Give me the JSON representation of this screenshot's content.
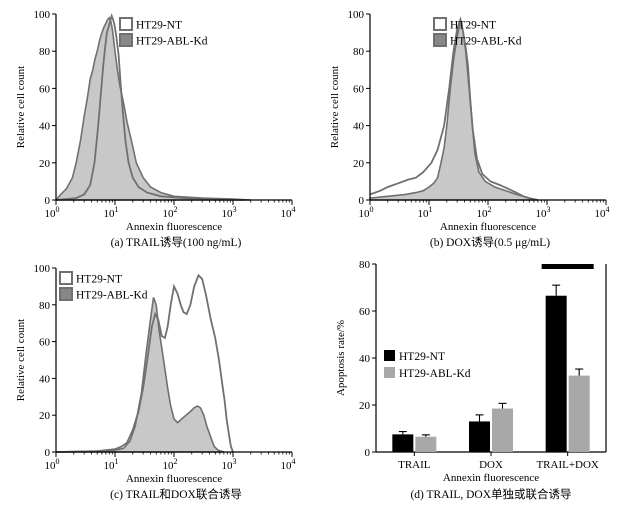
{
  "chart_data": [
    {
      "type": "area",
      "panel": "a",
      "caption": "(a) TRAIL诱导(100 ng/mL)",
      "xlabel": "Annexin fluorescence",
      "ylabel": "Relative cell count",
      "xscale": "log",
      "xlim": [
        1,
        10000
      ],
      "ylim": [
        0,
        100
      ],
      "xticks": [
        1,
        10,
        100,
        1000,
        10000
      ],
      "xtick_labels": [
        [
          "10",
          "0"
        ],
        [
          "10",
          "1"
        ],
        [
          "10",
          "2"
        ],
        [
          "10",
          "3"
        ],
        [
          "10",
          "4"
        ]
      ],
      "yticks": [
        0,
        20,
        40,
        60,
        80,
        100
      ],
      "legend": "top-right",
      "series": [
        {
          "name": "HT29-NT",
          "style": "outline",
          "points": [
            [
              1,
              0
            ],
            [
              2.2,
              1
            ],
            [
              3,
              3
            ],
            [
              3.8,
              8
            ],
            [
              4.5,
              20
            ],
            [
              5.2,
              40
            ],
            [
              5.8,
              58
            ],
            [
              6.3,
              72
            ],
            [
              6.8,
              82
            ],
            [
              7.3,
              90
            ],
            [
              7.8,
              93
            ],
            [
              8.3,
              96
            ],
            [
              8.8,
              99
            ],
            [
              9.3,
              97
            ],
            [
              9.8,
              94
            ],
            [
              10.5,
              88
            ],
            [
              11.5,
              78
            ],
            [
              12.5,
              62
            ],
            [
              13.5,
              48
            ],
            [
              15,
              32
            ],
            [
              17,
              20
            ],
            [
              20,
              12
            ],
            [
              25,
              7
            ],
            [
              35,
              4
            ],
            [
              60,
              2
            ],
            [
              150,
              1
            ],
            [
              600,
              0.5
            ],
            [
              1500,
              0
            ]
          ]
        },
        {
          "name": "HT29-ABL-Kd",
          "style": "filled",
          "points": [
            [
              1,
              0
            ],
            [
              1.2,
              3
            ],
            [
              1.5,
              6
            ],
            [
              1.9,
              12
            ],
            [
              2.2,
              20
            ],
            [
              2.6,
              32
            ],
            [
              3,
              45
            ],
            [
              3.4,
              55
            ],
            [
              3.8,
              65
            ],
            [
              4.2,
              70
            ],
            [
              4.6,
              76
            ],
            [
              5,
              80
            ],
            [
              5.5,
              86
            ],
            [
              6,
              90
            ],
            [
              6.5,
              93
            ],
            [
              7,
              95
            ],
            [
              7.5,
              97
            ],
            [
              8,
              98
            ],
            [
              8.5,
              96
            ],
            [
              9,
              92
            ],
            [
              9.5,
              86
            ],
            [
              10,
              80
            ],
            [
              11,
              70
            ],
            [
              12,
              62
            ],
            [
              14,
              52
            ],
            [
              16,
              42
            ],
            [
              19,
              32
            ],
            [
              23,
              20
            ],
            [
              30,
              12
            ],
            [
              40,
              7
            ],
            [
              60,
              4
            ],
            [
              100,
              2
            ],
            [
              300,
              1
            ],
            [
              1000,
              0.5
            ],
            [
              2000,
              0
            ]
          ]
        }
      ]
    },
    {
      "type": "area",
      "panel": "b",
      "caption": "(b) DOX诱导(0.5 μg/mL)",
      "xlabel": "Annexin fluorescence",
      "ylabel": "Relative cell count",
      "xscale": "log",
      "xlim": [
        1,
        10000
      ],
      "ylim": [
        0,
        100
      ],
      "xticks": [
        1,
        10,
        100,
        1000,
        10000
      ],
      "xtick_labels": [
        [
          "10",
          "0"
        ],
        [
          "10",
          "1"
        ],
        [
          "10",
          "2"
        ],
        [
          "10",
          "3"
        ],
        [
          "10",
          "4"
        ]
      ],
      "yticks": [
        0,
        20,
        40,
        60,
        80,
        100
      ],
      "legend": "top-right",
      "series": [
        {
          "name": "HT29-NT",
          "style": "outline",
          "points": [
            [
              1,
              3
            ],
            [
              1.5,
              5
            ],
            [
              2,
              7
            ],
            [
              3,
              9
            ],
            [
              4.5,
              11
            ],
            [
              6,
              12
            ],
            [
              8,
              15
            ],
            [
              11,
              20
            ],
            [
              14,
              27
            ],
            [
              18,
              40
            ],
            [
              22,
              60
            ],
            [
              26,
              80
            ],
            [
              30,
              92
            ],
            [
              34,
              97
            ],
            [
              38,
              90
            ],
            [
              42,
              80
            ],
            [
              48,
              60
            ],
            [
              55,
              38
            ],
            [
              65,
              22
            ],
            [
              80,
              14
            ],
            [
              110,
              10
            ],
            [
              160,
              8
            ],
            [
              220,
              6
            ],
            [
              300,
              4
            ],
            [
              400,
              2
            ],
            [
              500,
              1
            ],
            [
              700,
              0
            ]
          ]
        },
        {
          "name": "HT29-ABL-Kd",
          "style": "filled",
          "points": [
            [
              1,
              1
            ],
            [
              2,
              2
            ],
            [
              4,
              3
            ],
            [
              6,
              4
            ],
            [
              8,
              5
            ],
            [
              10,
              7
            ],
            [
              12,
              9
            ],
            [
              14,
              12
            ],
            [
              16,
              20
            ],
            [
              18,
              28
            ],
            [
              20,
              40
            ],
            [
              23,
              60
            ],
            [
              26,
              75
            ],
            [
              29,
              85
            ],
            [
              32,
              92
            ],
            [
              35,
              96
            ],
            [
              38,
              90
            ],
            [
              42,
              82
            ],
            [
              46,
              72
            ],
            [
              50,
              55
            ],
            [
              55,
              38
            ],
            [
              60,
              25
            ],
            [
              70,
              15
            ],
            [
              90,
              10
            ],
            [
              130,
              7
            ],
            [
              200,
              5
            ],
            [
              300,
              3
            ],
            [
              400,
              2
            ],
            [
              500,
              1
            ],
            [
              700,
              0
            ]
          ]
        }
      ]
    },
    {
      "type": "area",
      "panel": "c",
      "caption": "(c) TRAIL和DOX联合诱导",
      "xlabel": "Annexin fluorescence",
      "ylabel": "Relative cell count",
      "xscale": "log",
      "xlim": [
        1,
        10000
      ],
      "ylim": [
        0,
        100
      ],
      "xticks": [
        1,
        10,
        100,
        1000,
        10000
      ],
      "xtick_labels": [
        [
          "10",
          "0"
        ],
        [
          "10",
          "1"
        ],
        [
          "10",
          "2"
        ],
        [
          "10",
          "3"
        ],
        [
          "10",
          "4"
        ]
      ],
      "yticks": [
        0,
        20,
        40,
        60,
        80,
        100
      ],
      "legend": "top-left",
      "series": [
        {
          "name": "HT29-NT",
          "style": "outline",
          "points": [
            [
              1,
              0
            ],
            [
              5,
              0.5
            ],
            [
              10,
              1.5
            ],
            [
              13,
              3
            ],
            [
              16,
              5
            ],
            [
              20,
              12
            ],
            [
              25,
              22
            ],
            [
              30,
              35
            ],
            [
              36,
              52
            ],
            [
              42,
              68
            ],
            [
              48,
              75
            ],
            [
              54,
              72
            ],
            [
              62,
              63
            ],
            [
              70,
              62
            ],
            [
              78,
              68
            ],
            [
              88,
              80
            ],
            [
              100,
              90
            ],
            [
              115,
              86
            ],
            [
              130,
              80
            ],
            [
              145,
              76
            ],
            [
              165,
              75
            ],
            [
              190,
              80
            ],
            [
              220,
              90
            ],
            [
              260,
              96
            ],
            [
              300,
              94
            ],
            [
              350,
              85
            ],
            [
              420,
              72
            ],
            [
              500,
              62
            ],
            [
              580,
              50
            ],
            [
              650,
              38
            ],
            [
              720,
              28
            ],
            [
              780,
              18
            ],
            [
              850,
              10
            ],
            [
              920,
              3
            ],
            [
              1000,
              0
            ]
          ]
        },
        {
          "name": "HT29-ABL-Kd",
          "style": "filled",
          "points": [
            [
              1,
              0
            ],
            [
              5,
              0.5
            ],
            [
              10,
              1
            ],
            [
              14,
              2
            ],
            [
              18,
              6
            ],
            [
              22,
              14
            ],
            [
              28,
              32
            ],
            [
              34,
              55
            ],
            [
              40,
              72
            ],
            [
              45,
              84
            ],
            [
              50,
              80
            ],
            [
              56,
              66
            ],
            [
              63,
              55
            ],
            [
              70,
              45
            ],
            [
              78,
              35
            ],
            [
              88,
              25
            ],
            [
              100,
              18
            ],
            [
              115,
              16
            ],
            [
              135,
              18
            ],
            [
              160,
              20
            ],
            [
              190,
              22
            ],
            [
              220,
              24
            ],
            [
              250,
              25
            ],
            [
              280,
              24
            ],
            [
              320,
              20
            ],
            [
              360,
              14
            ],
            [
              420,
              8
            ],
            [
              480,
              3
            ],
            [
              560,
              1
            ],
            [
              700,
              0
            ]
          ]
        }
      ]
    },
    {
      "type": "bar",
      "panel": "d",
      "caption": "(d) TRAIL, DOX单独或联合诱导",
      "xlabel": "Annexin fluorescence",
      "ylabel": "Apoptosis rate/%",
      "categories": [
        "TRAIL",
        "DOX",
        "TRAIL+DOX"
      ],
      "ylim": [
        0,
        80
      ],
      "yticks": [
        0,
        20,
        40,
        60,
        80
      ],
      "legend": "left",
      "series": [
        {
          "name": "HT29-NT",
          "color": "#000000",
          "values": [
            7.5,
            13,
            66.5
          ],
          "errors": [
            1.2,
            2.8,
            4.5
          ]
        },
        {
          "name": "HT29-ABL-Kd",
          "color": "#a8a8a8",
          "values": [
            6.5,
            18.5,
            32.5
          ],
          "errors": [
            0.8,
            2.2,
            2.8
          ]
        }
      ],
      "annotation": "significance bar over TRAIL+DOX"
    }
  ],
  "colors": {
    "fill_gray": "#c8c8c8",
    "outline_gray": "#707070",
    "ntlegend_fill": "#ffffff",
    "bar_black": "#000000",
    "bar_gray": "#a8a8a8"
  }
}
